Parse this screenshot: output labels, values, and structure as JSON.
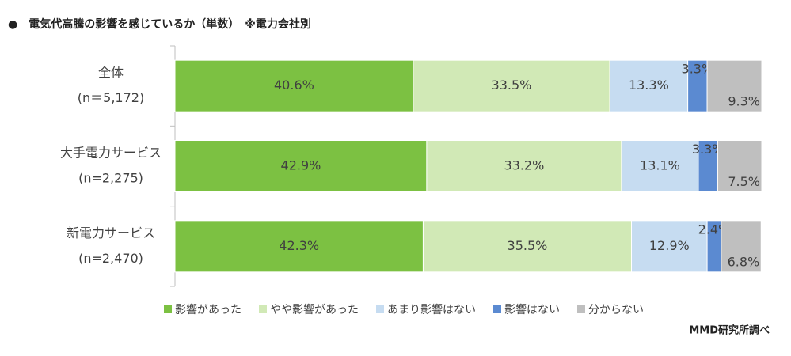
{
  "chart_data": {
    "type": "stacked-bar-horizontal",
    "title": "●　電気代高騰の影響を感じているか（単数）　※電力会社別",
    "categories": [
      "全体",
      "大手電力サービス",
      "新電力サービス"
    ],
    "category_notes": [
      "(n＝5,172)",
      "(n=2,275)",
      "(n=2,470)"
    ],
    "xlim": [
      0,
      100
    ],
    "series": [
      {
        "name": "影響があった",
        "color": "#7cc142",
        "values": [
          40.6,
          42.9,
          42.3
        ],
        "value_labels": [
          "40.6%",
          "42.9%",
          "42.3%"
        ]
      },
      {
        "name": "やや影響があった",
        "color": "#d1e9b6",
        "values": [
          33.5,
          33.2,
          35.5
        ],
        "value_labels": [
          "33.5%",
          "33.2%",
          "35.5%"
        ]
      },
      {
        "name": "あまり影響はない",
        "color": "#c6dcf1",
        "values": [
          13.3,
          13.1,
          12.9
        ],
        "value_labels": [
          "13.3%",
          "13.1%",
          "12.9%"
        ]
      },
      {
        "name": "影響はない",
        "color": "#5b8ad1",
        "values": [
          3.3,
          3.3,
          2.4
        ],
        "value_labels": [
          "3.3%",
          "3.3%",
          "2.4%"
        ]
      },
      {
        "name": "分からない",
        "color": "#bfbfbf",
        "values": [
          9.3,
          7.5,
          6.8
        ],
        "value_labels": [
          "9.3%",
          "7.5%",
          "6.8%"
        ]
      }
    ],
    "source": "MMD研究所調べ"
  }
}
